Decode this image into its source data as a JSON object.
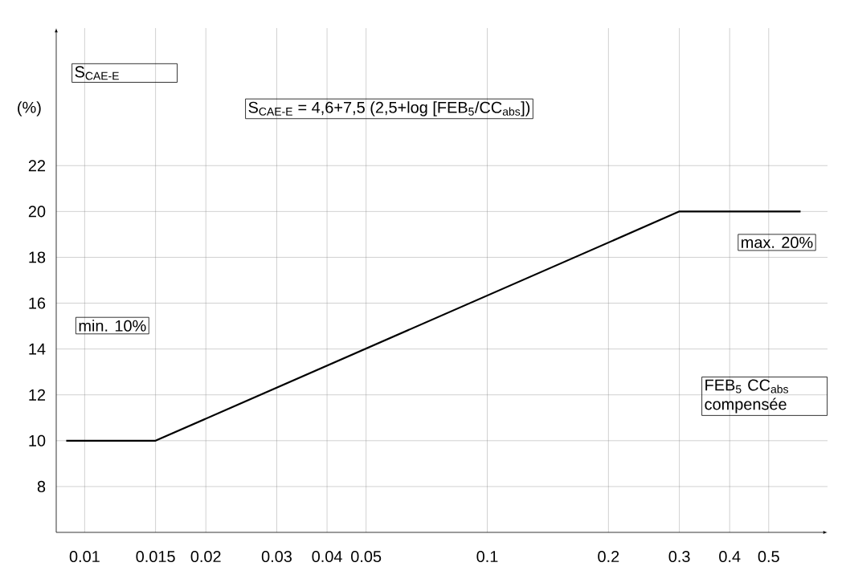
{
  "chart_data": {
    "type": "line",
    "ylabel": "S$_{CAE-E}$",
    "xlabel": "FEB$_{5}$ CC$_{abs}$ compensée",
    "annotations": [
      "S$_{CAE-E}$ = 4,6+7,5 (2,5+log [FEB$_{5}$/CC$_{abs}$])",
      "(%)",
      "min. 10%",
      "max. 20%"
    ],
    "log": "x",
    "x": [
      0.009,
      0.015,
      0.3,
      0.6
    ],
    "series": [
      {
        "color": "#000000",
        "values": [
          10,
          10,
          20,
          20
        ]
      }
    ],
    "xlim": [
      0.0085,
      0.7
    ],
    "xticks": [
      0.01,
      0.015,
      0.02,
      0.03,
      0.04,
      0.05,
      0.1,
      0.2,
      0.3,
      0.4,
      0.5
    ],
    "ylim": [
      6,
      28
    ],
    "yticks": [
      8,
      10,
      12,
      14,
      16,
      18,
      20,
      22
    ],
    "grid": true,
    "marker": "none",
    "line_style": "solid"
  }
}
